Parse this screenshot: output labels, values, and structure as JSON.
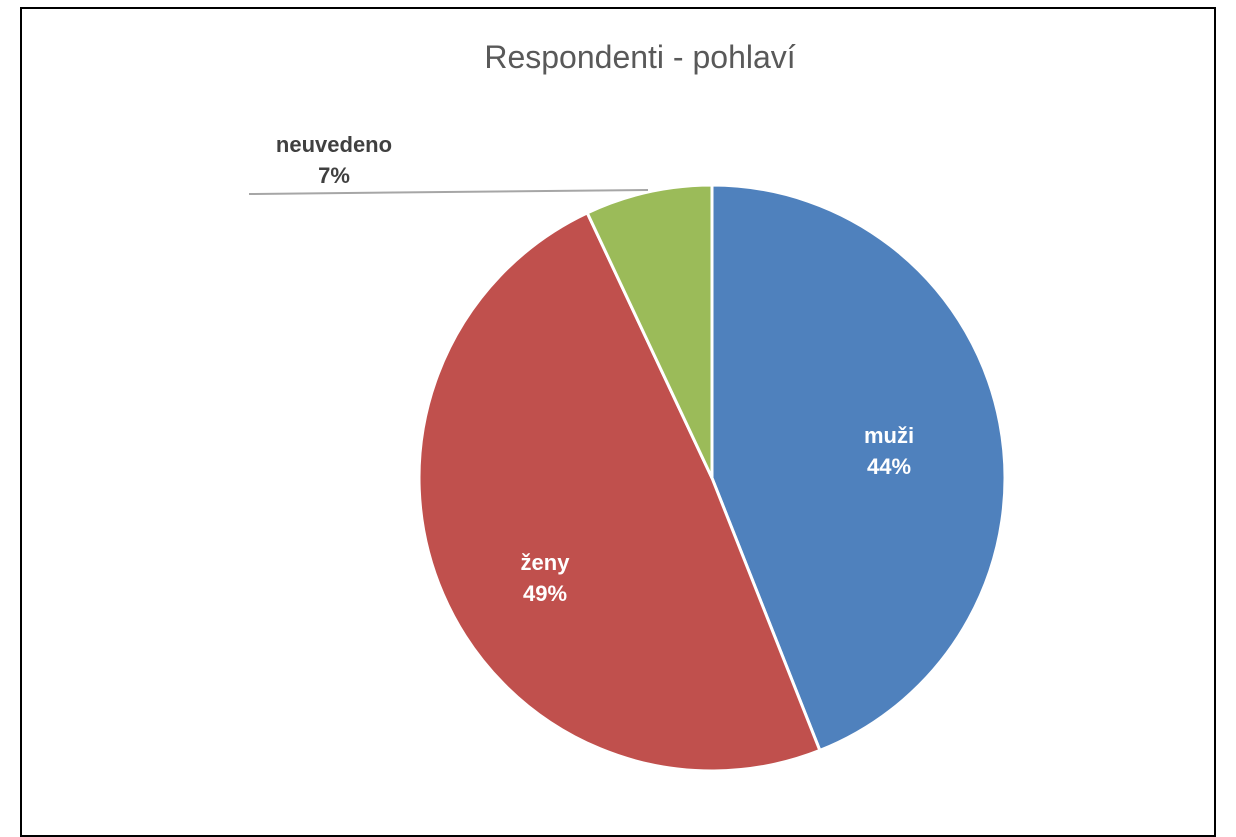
{
  "chart_data": {
    "type": "pie",
    "title": "Respondenti - pohlaví",
    "categories": [
      "muži",
      "ženy",
      "neuvedeno"
    ],
    "values": [
      44,
      49,
      7
    ],
    "value_labels": [
      "44%",
      "49%",
      "7%"
    ],
    "colors": [
      "#4F81BD",
      "#C0504D",
      "#9BBB59"
    ],
    "label_colors": [
      "#FFFFFF",
      "#FFFFFF",
      "#404040"
    ],
    "start_angle": "12 o'clock",
    "direction": "clockwise",
    "legend": "none"
  }
}
